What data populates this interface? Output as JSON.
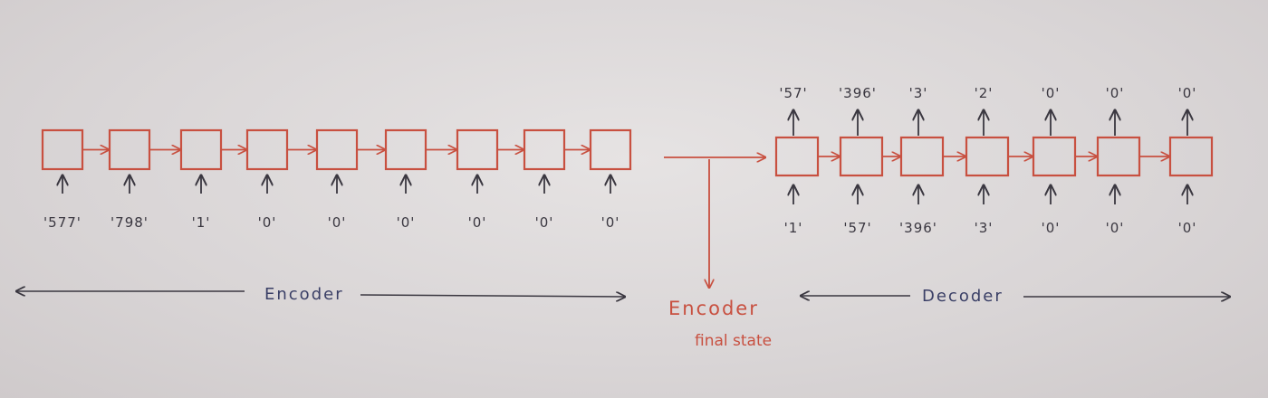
{
  "encoder": {
    "label": "Encoder",
    "inputs": [
      "'577'",
      "'798'",
      "'1'",
      "'0'",
      "'0'",
      "'0'",
      "'0'",
      "'0'",
      "'0'"
    ]
  },
  "decoder": {
    "label": "Decoder",
    "inputs": [
      "'1'",
      "'57'",
      "'396'",
      "'3'",
      "'0'",
      "'0'",
      "'0'"
    ],
    "outputs": [
      "'57'",
      "'396'",
      "'3'",
      "'2'",
      "'0'",
      "'0'",
      "'0'"
    ]
  },
  "final_state": {
    "line1": "Encoder",
    "line2": "final state"
  },
  "colors": {
    "ink": "#3a3740",
    "cell": "#c85040",
    "section_text": "#3a3f66"
  }
}
